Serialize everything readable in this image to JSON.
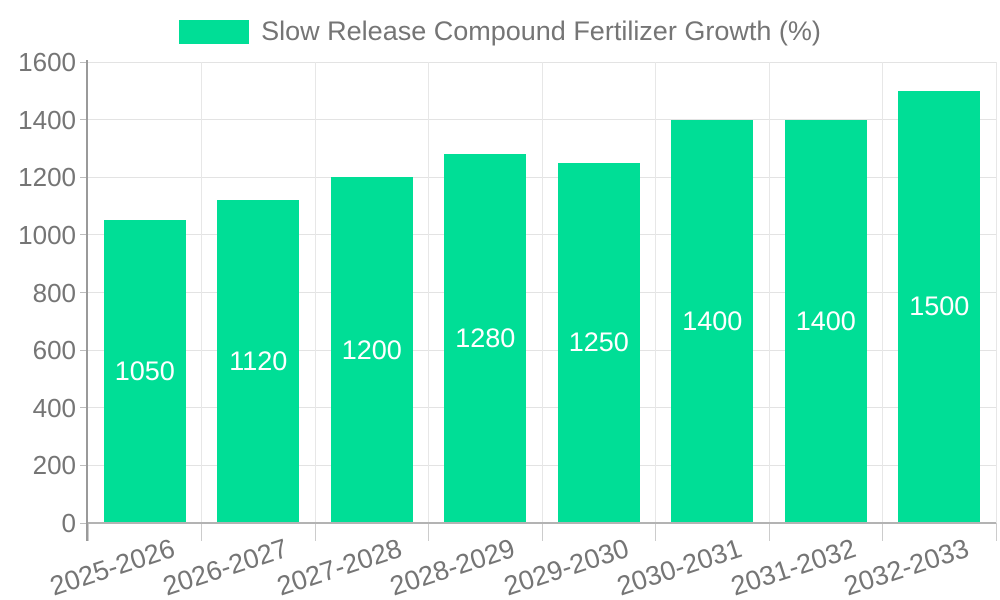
{
  "legend": {
    "label": "Slow Release Compound Fertilizer Growth (%)"
  },
  "colors": {
    "bar": "#00DE96",
    "axis_text": "#757575",
    "value_label": "#FFFFFF",
    "gridline": "#E3E3E3",
    "axis_line": "#9A9A9A",
    "baseline": "#B3B3B3",
    "background": "#FFFFFF"
  },
  "chart_data": {
    "type": "bar",
    "title": "Slow Release Compound Fertilizer Growth (%)",
    "categories": [
      "2025-2026",
      "2026-2027",
      "2027-2028",
      "2028-2029",
      "2029-2030",
      "2030-2031",
      "2031-2032",
      "2032-2033"
    ],
    "values": [
      1050,
      1120,
      1200,
      1280,
      1250,
      1400,
      1400,
      1500
    ],
    "xlabel": "",
    "ylabel": "",
    "ylim": [
      0,
      1600
    ],
    "yticks": [
      0,
      200,
      400,
      600,
      800,
      1000,
      1200,
      1400,
      1600
    ],
    "grid": "horizontal and vertical light gray gridlines",
    "legend_position": "top-center",
    "value_labels": "centered inside bars, white",
    "x_tick_label_rotation_deg": -18
  }
}
